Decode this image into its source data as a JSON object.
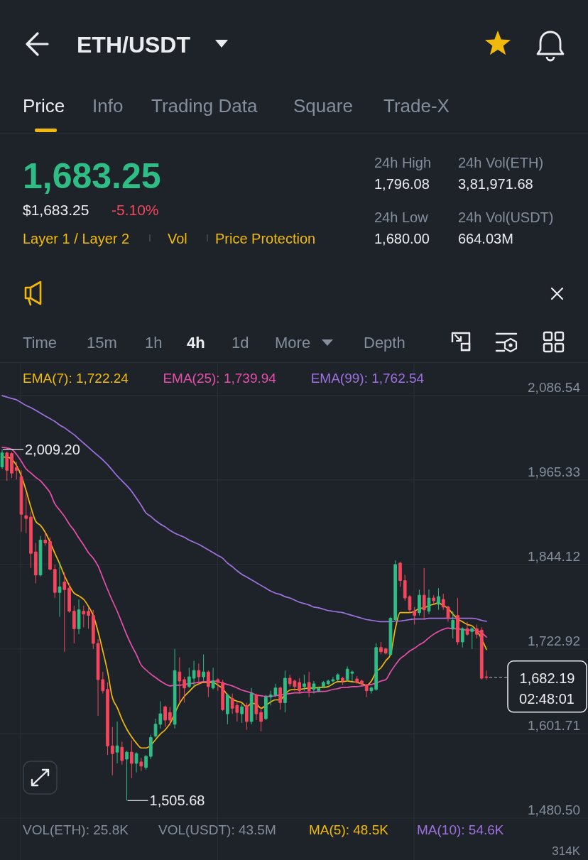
{
  "chart_data": {
    "type": "candlestick",
    "title": "ETH/USDT",
    "categories": [
      null,
      null,
      null,
      null,
      null,
      null,
      null,
      null,
      null,
      null,
      null,
      null,
      null,
      null,
      null,
      null,
      null,
      null,
      null,
      null,
      null,
      null,
      null,
      null,
      null,
      null,
      null,
      null,
      null,
      null,
      null,
      null,
      null,
      null,
      null,
      null,
      null,
      null,
      null,
      null,
      null,
      null,
      null,
      null,
      null,
      null,
      null,
      null,
      null,
      null,
      null,
      null,
      null,
      null,
      null,
      null,
      null,
      null,
      null,
      null,
      null,
      null,
      null,
      null,
      null,
      null,
      null,
      null,
      null,
      null,
      null,
      null,
      null,
      null,
      null,
      null,
      null,
      null,
      null,
      null,
      null,
      null,
      null,
      null,
      null,
      null,
      null,
      null,
      null,
      null,
      null,
      null,
      null,
      null,
      null,
      null,
      null,
      null,
      null,
      null,
      null,
      null
    ],
    "ohlc": [
      [
        1984,
        2009.2,
        1981,
        2004
      ],
      [
        2004,
        2006,
        1964,
        1979
      ],
      [
        2003,
        2005,
        1968,
        1975
      ],
      [
        1983,
        1991,
        1966,
        1979
      ],
      [
        1970,
        1979,
        1891,
        1916
      ],
      [
        1914,
        1946,
        1889,
        1910
      ],
      [
        1912,
        1920,
        1839,
        1860
      ],
      [
        1862,
        1875,
        1817,
        1829
      ],
      [
        1829,
        1885,
        1827,
        1879
      ],
      [
        1879,
        1891,
        1871,
        1875
      ],
      [
        1877,
        1883,
        1836,
        1837
      ],
      [
        1837,
        1844,
        1796,
        1804
      ],
      [
        1804,
        1848,
        1769,
        1812
      ],
      [
        1819,
        1833,
        1719,
        1808
      ],
      [
        1810,
        1817,
        1775,
        1777
      ],
      [
        1777,
        1785,
        1731,
        1752
      ],
      [
        1752,
        1794,
        1744,
        1779
      ],
      [
        1777,
        1785,
        1754,
        1773
      ],
      [
        1777,
        1783,
        1752,
        1771
      ],
      [
        1771,
        1779,
        1723,
        1731
      ],
      [
        1731,
        1737,
        1627,
        1679
      ],
      [
        1679,
        1690,
        1659,
        1663
      ],
      [
        1665,
        1675,
        1571,
        1584
      ],
      [
        1584,
        1611,
        1542,
        1573
      ],
      [
        1575,
        1619,
        1559,
        1584
      ],
      [
        1582,
        1590,
        1557,
        1563
      ],
      [
        1565,
        1577,
        1505.68,
        1575
      ],
      [
        1575,
        1592,
        1538,
        1559
      ],
      [
        1559,
        1575,
        1546,
        1573
      ],
      [
        1561,
        1567,
        1548,
        1555
      ],
      [
        1553,
        1571,
        1550,
        1569
      ],
      [
        1569,
        1600,
        1565,
        1596
      ],
      [
        1598,
        1623,
        1596,
        1615
      ],
      [
        1615,
        1648,
        1609,
        1630
      ],
      [
        1640,
        1642,
        1611,
        1621
      ],
      [
        1632,
        1640,
        1613,
        1621
      ],
      [
        1615,
        1723,
        1609,
        1692
      ],
      [
        1690,
        1711,
        1646,
        1677
      ],
      [
        1679,
        1683,
        1646,
        1667
      ],
      [
        1669,
        1696,
        1667,
        1683
      ],
      [
        1681,
        1706,
        1669,
        1692
      ],
      [
        1692,
        1702,
        1671,
        1683
      ],
      [
        1683,
        1715,
        1677,
        1690
      ],
      [
        1690,
        1692,
        1654,
        1669
      ],
      [
        1667,
        1696,
        1665,
        1677
      ],
      [
        1679,
        1681,
        1663,
        1675
      ],
      [
        1675,
        1679,
        1634,
        1636
      ],
      [
        1630,
        1659,
        1615,
        1657
      ],
      [
        1652,
        1659,
        1630,
        1638
      ],
      [
        1642,
        1646,
        1619,
        1632
      ],
      [
        1630,
        1644,
        1617,
        1640
      ],
      [
        1642,
        1646,
        1607,
        1619
      ],
      [
        1619,
        1667,
        1615,
        1659
      ],
      [
        1657,
        1659,
        1621,
        1630
      ],
      [
        1632,
        1638,
        1605,
        1619
      ],
      [
        1623,
        1657,
        1621,
        1654
      ],
      [
        1654,
        1663,
        1642,
        1657
      ],
      [
        1657,
        1673,
        1654,
        1667
      ],
      [
        1667,
        1669,
        1636,
        1646
      ],
      [
        1646,
        1692,
        1632,
        1681
      ],
      [
        1681,
        1686,
        1669,
        1673
      ],
      [
        1677,
        1679,
        1663,
        1669
      ],
      [
        1675,
        1681,
        1659,
        1663
      ],
      [
        1669,
        1686,
        1663,
        1673
      ],
      [
        1675,
        1690,
        1654,
        1663
      ],
      [
        1665,
        1677,
        1659,
        1673
      ],
      [
        1663,
        1669,
        1661,
        1667
      ],
      [
        1669,
        1677,
        1667,
        1675
      ],
      [
        1673,
        1679,
        1671,
        1677
      ],
      [
        1677,
        1683,
        1675,
        1679
      ],
      [
        1679,
        1688,
        1677,
        1686
      ],
      [
        1681,
        1683,
        1671,
        1677
      ],
      [
        1679,
        1698,
        1677,
        1694
      ],
      [
        1688,
        1692,
        1677,
        1690
      ],
      [
        1680,
        1684,
        1673,
        1675
      ],
      [
        1677,
        1679,
        1671,
        1673
      ],
      [
        1671,
        1673,
        1654,
        1663
      ],
      [
        1663,
        1669,
        1659,
        1667
      ],
      [
        1665,
        1731,
        1663,
        1725
      ],
      [
        1725,
        1733,
        1715,
        1719
      ],
      [
        1723,
        1725,
        1715,
        1717
      ],
      [
        1715,
        1769,
        1713,
        1767
      ],
      [
        1765,
        1850,
        1763,
        1844
      ],
      [
        1846,
        1848,
        1812,
        1821
      ],
      [
        1821,
        1829,
        1792,
        1796
      ],
      [
        1798,
        1800,
        1775,
        1779
      ],
      [
        1777,
        1783,
        1758,
        1771
      ],
      [
        1775,
        1808,
        1771,
        1800
      ],
      [
        1800,
        1839,
        1765,
        1779
      ],
      [
        1777,
        1808,
        1773,
        1796
      ],
      [
        1796,
        1800,
        1787,
        1792
      ],
      [
        1787,
        1810,
        1779,
        1798
      ],
      [
        1794,
        1802,
        1779,
        1783
      ],
      [
        1783,
        1785,
        1762,
        1767
      ],
      [
        1752,
        1777,
        1738,
        1764
      ],
      [
        1771,
        1796,
        1729,
        1733
      ],
      [
        1733,
        1754,
        1725,
        1752
      ],
      [
        1752,
        1762,
        1742,
        1744
      ],
      [
        1748,
        1754,
        1723,
        1752
      ],
      [
        1752,
        1758,
        1738,
        1744
      ],
      [
        1750,
        1754,
        1679,
        1681
      ],
      [
        1683,
        1692,
        1679,
        1682.19
      ]
    ],
    "colors": [
      "#2ebd85",
      "#f6465d",
      "#f6465d",
      "#f6465d",
      "#f6465d",
      "#f6465d",
      "#f6465d",
      "#f6465d",
      "#2ebd85",
      "#f6465d",
      "#f6465d",
      "#f6465d",
      "#2ebd85",
      "#f6465d",
      "#f6465d",
      "#f6465d",
      "#2ebd85",
      "#f6465d",
      "#f6465d",
      "#f6465d",
      "#f6465d",
      "#f6465d",
      "#f6465d",
      "#f6465d",
      "#2ebd85",
      "#f6465d",
      "#2ebd85",
      "#f6465d",
      "#2ebd85",
      "#f6465d",
      "#2ebd85",
      "#2ebd85",
      "#2ebd85",
      "#2ebd85",
      "#f6465d",
      "#f6465d",
      "#2ebd85",
      "#f6465d",
      "#f6465d",
      "#2ebd85",
      "#2ebd85",
      "#f6465d",
      "#2ebd85",
      "#f6465d",
      "#2ebd85",
      "#f6465d",
      "#f6465d",
      "#2ebd85",
      "#f6465d",
      "#f6465d",
      "#2ebd85",
      "#f6465d",
      "#2ebd85",
      "#f6465d",
      "#f6465d",
      "#2ebd85",
      "#2ebd85",
      "#2ebd85",
      "#f6465d",
      "#2ebd85",
      "#f6465d",
      "#f6465d",
      "#f6465d",
      "#2ebd85",
      "#f6465d",
      "#2ebd85",
      "#2ebd85",
      "#2ebd85",
      "#2ebd85",
      "#2ebd85",
      "#2ebd85",
      "#f6465d",
      "#2ebd85",
      "#2ebd85",
      "#f6465d",
      "#f6465d",
      "#f6465d",
      "#2ebd85",
      "#2ebd85",
      "#f6465d",
      "#f6465d",
      "#2ebd85",
      "#2ebd85",
      "#f6465d",
      "#f6465d",
      "#f6465d",
      "#f6465d",
      "#2ebd85",
      "#f6465d",
      "#2ebd85",
      "#f6465d",
      "#2ebd85",
      "#f6465d",
      "#f6465d",
      "#2ebd85",
      "#f6465d",
      "#2ebd85",
      "#f6465d",
      "#2ebd85",
      "#f6465d",
      "#f6465d",
      "#f6465d"
    ],
    "series": [
      {
        "name": "EMA(7): 1,722.24",
        "type": "line",
        "color": "#f0b90b",
        "values": [
          1998,
          1998,
          1995,
          1986,
          1971,
          1950,
          1926,
          1906,
          1900,
          1890,
          1876,
          1860,
          1845,
          1828,
          1814,
          1803,
          1799,
          1794,
          1784,
          1771,
          1748,
          1720,
          1690,
          1653,
          1639,
          1622,
          1608,
          1597,
          1588,
          1581,
          1581,
          1585,
          1593,
          1601,
          1607,
          1616,
          null,
          1645,
          1655,
          1662,
          1669,
          1673,
          1675,
          1675,
          1675,
          1671,
          1666,
          1657,
          1651,
          1648,
          1646,
          1640,
          1645,
          1644,
          1638,
          1642,
          1647,
          1650,
          1650,
          1658,
          1664,
          1665,
          1665,
          1666,
          1667,
          1667,
          1668,
          1668,
          1669,
          1673,
          1676,
          1676,
          1677,
          1676,
          1675,
          1673,
          1671,
          1677,
          1690,
          1696,
          1706,
          1715,
          1752,
          1775,
          1775,
          1775,
          1777,
          1781,
          1782,
          1785,
          1787,
          1789,
          1785,
          1781,
          1773,
          1766,
          1762,
          1758,
          1756,
          1749,
          null,
          1722.24
        ]
      },
      {
        "name": "EMA(25): 1,739.94",
        "type": "line",
        "color": "#e84fad",
        "values": [
          2012,
          2011,
          2009,
          2002,
          1992,
          1981,
          1975,
          1969,
          1964,
          1956,
          1947,
          1931,
          1922,
          1913,
          1902,
          1893,
          1882,
          1872,
          1861,
          1853,
          1842,
          1825,
          1808,
          1792,
          1777,
          1760,
          1743,
          1728,
          1715,
          1700,
          1693,
          1687,
          1682,
          1677,
          1673,
          1670,
          1671,
          1671,
          1672,
          1673,
          1674,
          1675,
          1676,
          1676,
          1677,
          1676,
          1674,
          1672,
          1670,
          1667,
          1664,
          1662,
          1660,
          1657,
          1656,
          1655,
          1655,
          1656,
          1657,
          1658,
          1659,
          1660,
          1660,
          1661,
          1661,
          1661,
          1662,
          1662,
          1663,
          1665,
          1666,
          1668,
          1668,
          1669,
          1669,
          1670,
          1671,
          1672,
          1674,
          1677,
          1679,
          1690,
          1700,
          1709,
          1714,
          1720,
          1724,
          1729,
          1733,
          1739,
          1744,
          1748,
          1751,
          1753,
          1752,
          1752,
          1751,
          1750,
          1750,
          1749,
          1746,
          1739.94
        ]
      },
      {
        "name": "EMA(99): 1,762.54",
        "type": "line",
        "color": "#9f72e0",
        "values": [
          2086,
          2084,
          2082,
          2080,
          2076,
          2072,
          2069,
          2065,
          2061,
          2057,
          2053,
          2049,
          2044,
          2040,
          2035,
          2030,
          2024,
          2018,
          2012,
          2006,
          2000,
          1994,
          1987,
          1979,
          1971,
          1964,
          1957,
          1949,
          1939,
          1929,
          1918,
          1913,
          1907,
          1902,
          1898,
          1893,
          1889,
          1886,
          1883,
          1879,
          1876,
          1873,
          1869,
          1865,
          1861,
          1857,
          1853,
          1846,
          1841,
          1835,
          1830,
          1826,
          1822,
          1818,
          1814,
          1810,
          1806,
          1803,
          1801,
          1798,
          1796,
          1793,
          1790,
          1788,
          1786,
          1783,
          1782,
          1780,
          1778,
          1777,
          1776,
          1775,
          1773,
          1771,
          1769,
          1767,
          1765,
          1764,
          1763,
          1762,
          1762,
          1762,
          1763,
          1763,
          1764,
          1765,
          1766,
          1766,
          1766,
          1767,
          1767,
          1767,
          1767,
          1767,
          1767,
          1767,
          1767,
          1767,
          1767,
          1766,
          1764,
          1762.54
        ]
      }
    ],
    "ylim": [
      1480.5,
      2132
    ],
    "yticks": [
      {
        "value": 1480.5,
        "label": "1,480.50"
      },
      {
        "value": 1601.71,
        "label": "1,601.71"
      },
      {
        "value": 1722.92,
        "label": "1,722.92"
      },
      {
        "value": 1844.12,
        "label": "1,844.12"
      },
      {
        "value": 1965.33,
        "label": "1,965.33"
      },
      {
        "value": 2086.54,
        "label": "2,086.54"
      }
    ],
    "grid": true,
    "legend": "top",
    "ref_lines": [
      {
        "axis": "y",
        "value": 1682.19,
        "label": "1,682.19",
        "line_style": "dashed",
        "color": "#b7bdc6"
      }
    ],
    "annotations": [
      "Price",
      "Info",
      "Trading Data",
      "Square",
      "Trade-X",
      "1,683.25",
      "$1,683.25",
      "-5.10%",
      "Layer 1 / Layer 2",
      "Vol",
      "Price Protection",
      "24h High",
      "1,796.08",
      "24h Low",
      "1,680.00",
      "24h Vol(ETH)",
      "3,81,971.68",
      "24h Vol(USDT)",
      "664.03M",
      "Time",
      "15m",
      "1h",
      "4h",
      "1d",
      "More",
      "Depth",
      "2,009.20",
      "1,505.68",
      "02:48:01",
      "VOL(ETH): 25.8K",
      "VOL(USDT): 43.5M",
      "MA(5): 48.5K",
      "MA(10): 54.6K",
      "314K"
    ]
  }
}
